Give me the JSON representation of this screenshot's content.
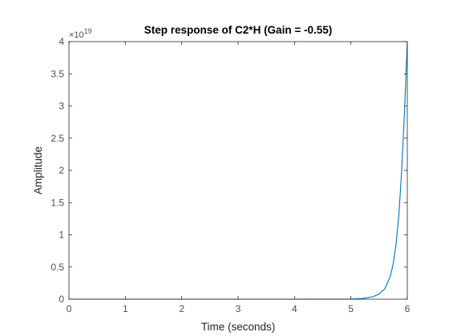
{
  "chart_data": {
    "type": "line",
    "title": "Step response of C2*H (Gain = -0.55)",
    "xlabel": "Time (seconds)",
    "ylabel": "Amplitude",
    "xlim": [
      0,
      6
    ],
    "ylim": [
      0,
      4
    ],
    "y_multiplier_base": "×10",
    "y_multiplier_exponent": "19",
    "x_ticks": [
      0,
      1,
      2,
      3,
      4,
      5,
      6
    ],
    "x_tick_labels": [
      "0",
      "1",
      "2",
      "3",
      "4",
      "5",
      "6"
    ],
    "y_ticks": [
      0,
      0.5,
      1,
      1.5,
      2,
      2.5,
      3,
      3.5,
      4
    ],
    "y_tick_labels": [
      "0",
      "0.5",
      "1",
      "1.5",
      "2",
      "2.5",
      "3",
      "3.5",
      "4"
    ],
    "grid": false,
    "series": [
      {
        "color": "#0072bd",
        "x": [
          0,
          1,
          2,
          3,
          4,
          5,
          5.2,
          5.4,
          5.5,
          5.6,
          5.7,
          5.75,
          5.8,
          5.85,
          5.9,
          5.95,
          6.0
        ],
        "y": [
          0,
          0,
          0,
          0,
          0,
          0.002,
          0.01,
          0.04,
          0.08,
          0.16,
          0.36,
          0.55,
          0.85,
          1.3,
          2.0,
          2.9,
          4.0
        ]
      }
    ]
  }
}
